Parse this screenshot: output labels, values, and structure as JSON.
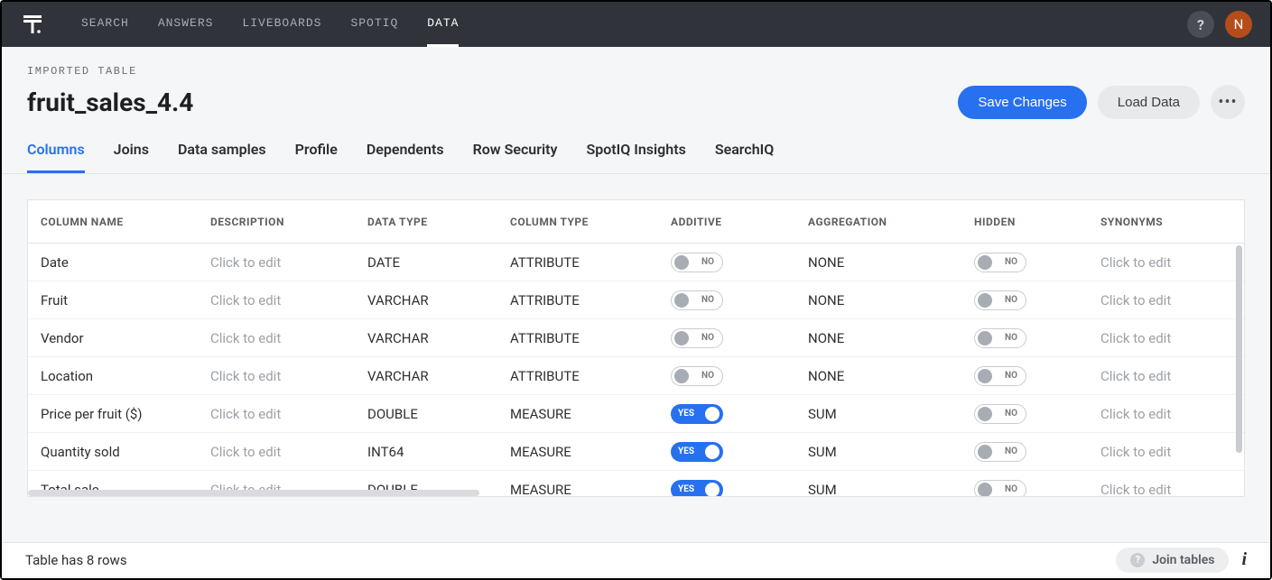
{
  "colors": {
    "topbar_bg": "#30343a",
    "page_bg": "#f5f6f7",
    "primary": "#2770ef",
    "secondary_btn": "#e7e9eb",
    "border": "#e1e3e5",
    "text_muted": "#9ca1a7",
    "avatar_bg": "#b54d1b"
  },
  "topnav": {
    "items": [
      "SEARCH",
      "ANSWERS",
      "LIVEBOARDS",
      "SPOTIQ",
      "DATA"
    ],
    "active_index": 4,
    "help_label": "?",
    "avatar_initial": "N"
  },
  "header": {
    "breadcrumb": "IMPORTED TABLE",
    "title": "fruit_sales_4.4",
    "save_label": "Save Changes",
    "load_label": "Load Data"
  },
  "subtabs": {
    "items": [
      "Columns",
      "Joins",
      "Data samples",
      "Profile",
      "Dependents",
      "Row Security",
      "SpotIQ Insights",
      "SearchIQ"
    ],
    "active_index": 0
  },
  "table": {
    "headers": [
      "COLUMN NAME",
      "DESCRIPTION",
      "DATA TYPE",
      "COLUMN TYPE",
      "ADDITIVE",
      "AGGREGATION",
      "HIDDEN",
      "SYNONYMS"
    ],
    "edit_placeholder": "Click to edit",
    "toggle_yes": "YES",
    "toggle_no": "NO",
    "rows": [
      {
        "name": "Date",
        "data_type": "DATE",
        "column_type": "ATTRIBUTE",
        "additive": false,
        "aggregation": "NONE",
        "hidden": false
      },
      {
        "name": "Fruit",
        "data_type": "VARCHAR",
        "column_type": "ATTRIBUTE",
        "additive": false,
        "aggregation": "NONE",
        "hidden": false
      },
      {
        "name": "Vendor",
        "data_type": "VARCHAR",
        "column_type": "ATTRIBUTE",
        "additive": false,
        "aggregation": "NONE",
        "hidden": false
      },
      {
        "name": "Location",
        "data_type": "VARCHAR",
        "column_type": "ATTRIBUTE",
        "additive": false,
        "aggregation": "NONE",
        "hidden": false
      },
      {
        "name": "Price per fruit ($)",
        "data_type": "DOUBLE",
        "column_type": "MEASURE",
        "additive": true,
        "aggregation": "SUM",
        "hidden": false
      },
      {
        "name": "Quantity sold",
        "data_type": "INT64",
        "column_type": "MEASURE",
        "additive": true,
        "aggregation": "SUM",
        "hidden": false
      },
      {
        "name": "Total sale",
        "data_type": "DOUBLE",
        "column_type": "MEASURE",
        "additive": true,
        "aggregation": "SUM",
        "hidden": false
      }
    ]
  },
  "footer": {
    "status": "Table has 8 rows",
    "join_label": "Join tables"
  }
}
